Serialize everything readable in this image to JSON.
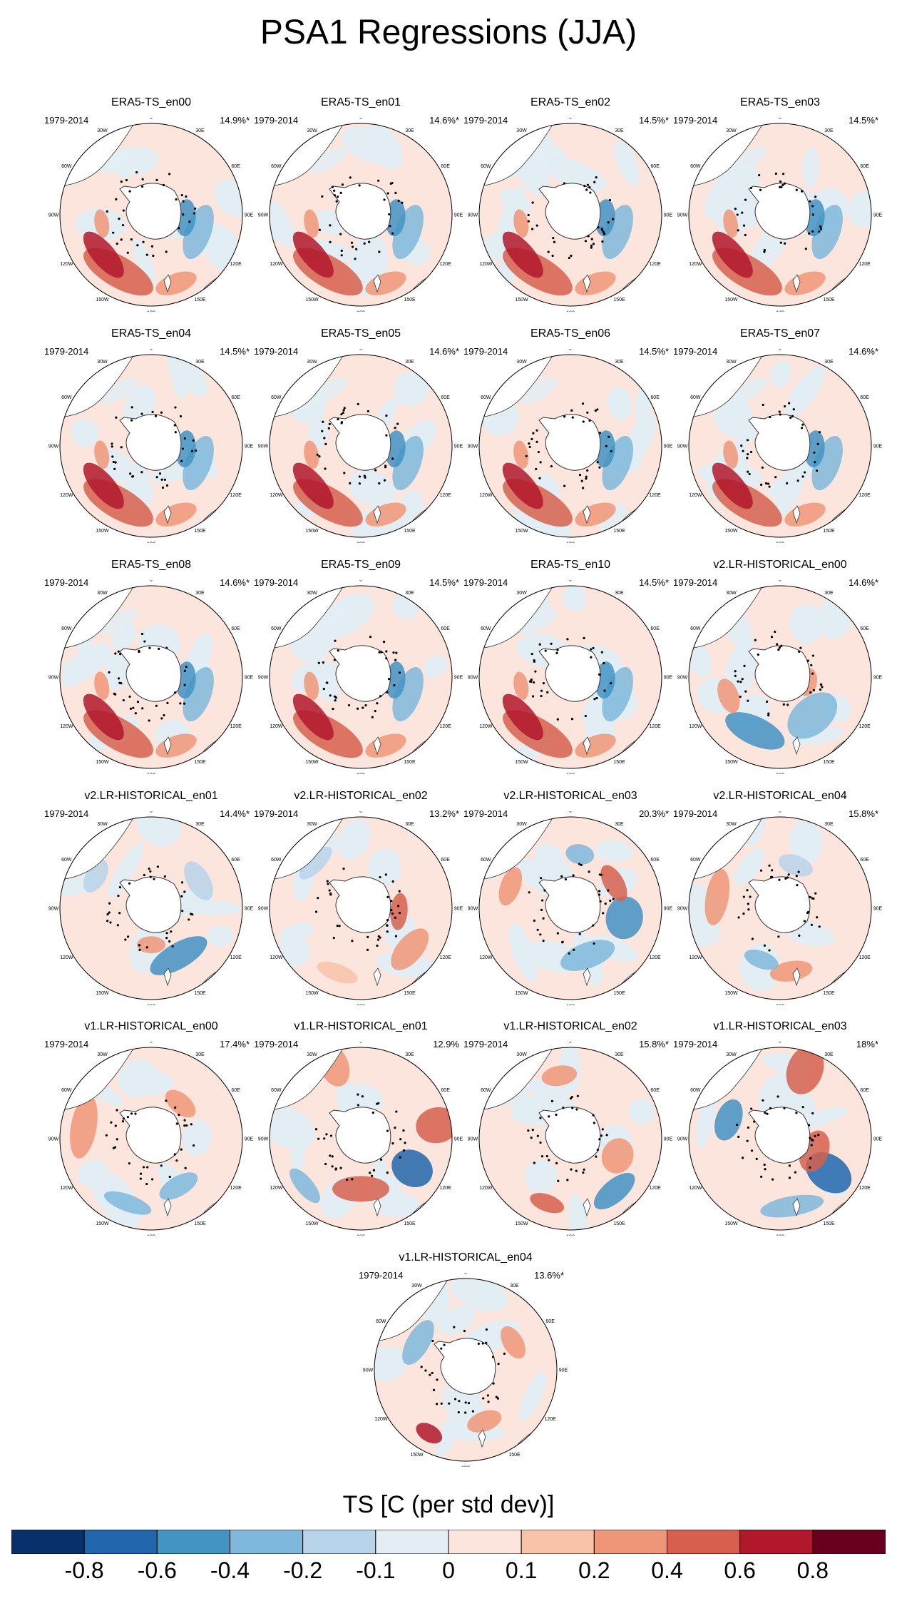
{
  "figure_title": "PSA1 Regressions (JJA)",
  "period": "1979-2014",
  "panels": [
    {
      "name": "ERA5-TS_en00",
      "pct": "14.9%*",
      "group": "era5"
    },
    {
      "name": "ERA5-TS_en01",
      "pct": "14.6%*",
      "group": "era5"
    },
    {
      "name": "ERA5-TS_en02",
      "pct": "14.5%*",
      "group": "era5"
    },
    {
      "name": "ERA5-TS_en03",
      "pct": "14.5%*",
      "group": "era5"
    },
    {
      "name": "ERA5-TS_en04",
      "pct": "14.5%*",
      "group": "era5"
    },
    {
      "name": "ERA5-TS_en05",
      "pct": "14.6%*",
      "group": "era5"
    },
    {
      "name": "ERA5-TS_en06",
      "pct": "14.5%*",
      "group": "era5"
    },
    {
      "name": "ERA5-TS_en07",
      "pct": "14.6%*",
      "group": "era5"
    },
    {
      "name": "ERA5-TS_en08",
      "pct": "14.6%*",
      "group": "era5"
    },
    {
      "name": "ERA5-TS_en09",
      "pct": "14.5%*",
      "group": "era5"
    },
    {
      "name": "ERA5-TS_en10",
      "pct": "14.5%*",
      "group": "era5"
    },
    {
      "name": "v2.LR-HISTORICAL_en00",
      "pct": "14.6%*",
      "group": "v2a"
    },
    {
      "name": "v2.LR-HISTORICAL_en01",
      "pct": "14.4%*",
      "group": "v2b"
    },
    {
      "name": "v2.LR-HISTORICAL_en02",
      "pct": "13.2%*",
      "group": "v2c"
    },
    {
      "name": "v2.LR-HISTORICAL_en03",
      "pct": "20.3%*",
      "group": "v2d"
    },
    {
      "name": "v2.LR-HISTORICAL_en04",
      "pct": "15.8%*",
      "group": "v2e"
    },
    {
      "name": "v1.LR-HISTORICAL_en00",
      "pct": "17.4%*",
      "group": "v1a"
    },
    {
      "name": "v1.LR-HISTORICAL_en01",
      "pct": "12.9%",
      "group": "v1b"
    },
    {
      "name": "v1.LR-HISTORICAL_en02",
      "pct": "15.8%*",
      "group": "v1c"
    },
    {
      "name": "v1.LR-HISTORICAL_en03",
      "pct": "18%*",
      "group": "v1d"
    },
    {
      "name": "v1.LR-HISTORICAL_en04",
      "pct": "13.6%*",
      "group": "v1e"
    }
  ],
  "map_labels": [
    "0",
    "30E",
    "60E",
    "90E",
    "120E",
    "150E",
    "180",
    "150W",
    "120W",
    "90W",
    "60W",
    "30W"
  ],
  "colorbar": {
    "title": "TS [C (per std dev)]",
    "ticks": [
      "-0.8",
      "-0.6",
      "-0.4",
      "-0.2",
      "-0.1",
      "0",
      "0.1",
      "0.2",
      "0.4",
      "0.6",
      "0.8"
    ],
    "colors": [
      "#08306b",
      "#2166ac",
      "#4393c3",
      "#7fb8da",
      "#b7d4ea",
      "#e3edf4",
      "#fbe5dc",
      "#f8c3a8",
      "#ee9778",
      "#d6604d",
      "#b2182b",
      "#67001f"
    ]
  },
  "map_colors": {
    "ocean_pos": "#fbe2d5",
    "ocean_neg": "#dbe8f2",
    "land": "#ffffff",
    "coast": "#333333"
  }
}
